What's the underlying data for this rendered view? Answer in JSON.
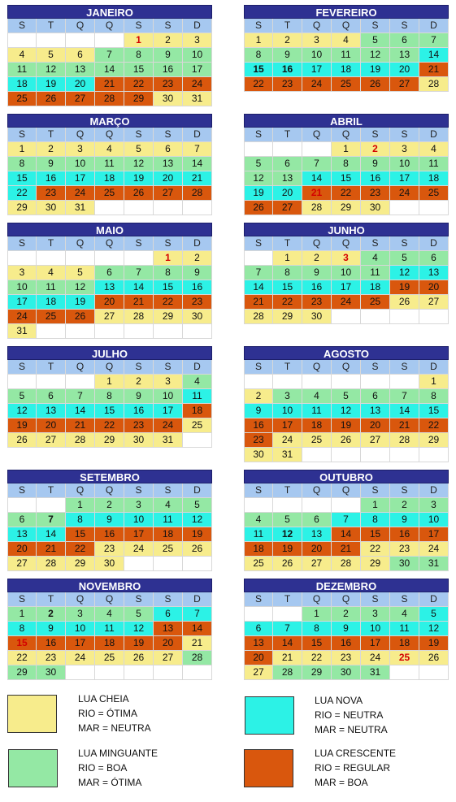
{
  "weekdays": [
    "S",
    "T",
    "Q",
    "Q",
    "S",
    "S",
    "D"
  ],
  "colors": {
    "Y": "#f7ec8c",
    "G": "#94e8a4",
    "C": "#2cf2e6",
    "O": "#d9570d",
    "W": "#ffffff"
  },
  "months": [
    {
      "name": "JANEIRO",
      "red": [
        1
      ],
      "bold": [],
      "rows": [
        [
          null,
          null,
          null,
          null,
          1,
          2,
          3
        ],
        [
          4,
          5,
          6,
          7,
          8,
          9,
          10
        ],
        [
          11,
          12,
          13,
          14,
          15,
          16,
          17
        ],
        [
          18,
          19,
          20,
          21,
          22,
          23,
          24
        ],
        [
          25,
          26,
          27,
          28,
          29,
          30,
          31
        ]
      ],
      "colors": [
        "WWWWYYY",
        "YYYGGGG",
        "GGGGGGG",
        "CCCOOOO",
        "OOOOOYY"
      ]
    },
    {
      "name": "FEVEREIRO",
      "red": [],
      "bold": [
        15,
        16
      ],
      "rows": [
        [
          1,
          2,
          3,
          4,
          5,
          6,
          7
        ],
        [
          8,
          9,
          10,
          11,
          12,
          13,
          14
        ],
        [
          15,
          16,
          17,
          18,
          19,
          20,
          21
        ],
        [
          22,
          23,
          24,
          25,
          26,
          27,
          28
        ]
      ],
      "colors": [
        "YYYYGGG",
        "GGGGGGC",
        "CCCCCCO",
        "OOOOOOY"
      ]
    },
    {
      "name": "MARÇO",
      "red": [],
      "bold": [],
      "rows": [
        [
          1,
          2,
          3,
          4,
          5,
          6,
          7
        ],
        [
          8,
          9,
          10,
          11,
          12,
          13,
          14
        ],
        [
          15,
          16,
          17,
          18,
          19,
          20,
          21
        ],
        [
          22,
          23,
          24,
          25,
          26,
          27,
          28
        ],
        [
          29,
          30,
          31,
          null,
          null,
          null,
          null
        ]
      ],
      "colors": [
        "YYYYYYY",
        "GGGGGGG",
        "CCCCCCC",
        "COOOOOO",
        "YYYWWWW"
      ]
    },
    {
      "name": "ABRIL",
      "red": [
        2,
        21
      ],
      "bold": [],
      "rows": [
        [
          null,
          null,
          null,
          1,
          2,
          3,
          4
        ],
        [
          5,
          6,
          7,
          8,
          9,
          10,
          11
        ],
        [
          12,
          13,
          14,
          15,
          16,
          17,
          18
        ],
        [
          19,
          20,
          21,
          22,
          23,
          24,
          25
        ],
        [
          26,
          27,
          28,
          29,
          30,
          null,
          null
        ]
      ],
      "colors": [
        "WWWYYYY",
        "GGGGGGG",
        "GGCCCCC",
        "CCOOOOO",
        "OOYYYWW"
      ]
    },
    {
      "name": "MAIO",
      "red": [
        1
      ],
      "bold": [],
      "rows": [
        [
          null,
          null,
          null,
          null,
          null,
          1,
          2
        ],
        [
          3,
          4,
          5,
          6,
          7,
          8,
          9
        ],
        [
          10,
          11,
          12,
          13,
          14,
          15,
          16
        ],
        [
          17,
          18,
          19,
          20,
          21,
          22,
          23
        ],
        [
          24,
          25,
          26,
          27,
          28,
          29,
          30
        ],
        [
          31,
          null,
          null,
          null,
          null,
          null,
          null
        ]
      ],
      "colors": [
        "WWWWWYY",
        "YYYGGGG",
        "GGGCCCC",
        "CCCOOOO",
        "OOOYYYY",
        "YWWWWWW"
      ]
    },
    {
      "name": "JUNHO",
      "red": [
        3
      ],
      "bold": [],
      "rows": [
        [
          null,
          1,
          2,
          3,
          4,
          5,
          6
        ],
        [
          7,
          8,
          9,
          10,
          11,
          12,
          13
        ],
        [
          14,
          15,
          16,
          17,
          18,
          19,
          20
        ],
        [
          21,
          22,
          23,
          24,
          25,
          26,
          27
        ],
        [
          28,
          29,
          30,
          null,
          null,
          null,
          null
        ]
      ],
      "colors": [
        "WYYYGGG",
        "GGGGGCC",
        "CCCCCOO",
        "OOOOOYY",
        "YYYWWWW"
      ]
    },
    {
      "name": "JULHO",
      "red": [],
      "bold": [],
      "rows": [
        [
          null,
          null,
          null,
          1,
          2,
          3,
          4
        ],
        [
          5,
          6,
          7,
          8,
          9,
          10,
          11
        ],
        [
          12,
          13,
          14,
          15,
          16,
          17,
          18
        ],
        [
          19,
          20,
          21,
          22,
          23,
          24,
          25
        ],
        [
          26,
          27,
          28,
          29,
          30,
          31,
          null
        ]
      ],
      "colors": [
        "WWWYYYG",
        "GGGGGGC",
        "CCCCCCO",
        "OOOOOOY",
        "YYYYYYW"
      ]
    },
    {
      "name": "AGOSTO",
      "red": [],
      "bold": [],
      "rows": [
        [
          null,
          null,
          null,
          null,
          null,
          null,
          1
        ],
        [
          2,
          3,
          4,
          5,
          6,
          7,
          8
        ],
        [
          9,
          10,
          11,
          12,
          13,
          14,
          15
        ],
        [
          16,
          17,
          18,
          19,
          20,
          21,
          22
        ],
        [
          23,
          24,
          25,
          26,
          27,
          28,
          29
        ],
        [
          30,
          31,
          null,
          null,
          null,
          null,
          null
        ]
      ],
      "colors": [
        "WWWWWWY",
        "YGGGGGG",
        "CCCCCCC",
        "OOOOOOO",
        "OYYYYYY",
        "YYWWWWW"
      ]
    },
    {
      "name": "SETEMBRO",
      "red": [],
      "bold": [
        7
      ],
      "rows": [
        [
          null,
          null,
          1,
          2,
          3,
          4,
          5
        ],
        [
          6,
          7,
          8,
          9,
          10,
          11,
          12
        ],
        [
          13,
          14,
          15,
          16,
          17,
          18,
          19
        ],
        [
          20,
          21,
          22,
          23,
          24,
          25,
          26
        ],
        [
          27,
          28,
          29,
          30,
          null,
          null,
          null
        ]
      ],
      "colors": [
        "WWGGGGG",
        "GGCCCCC",
        "CCOOOOO",
        "OOOYYYY",
        "YYYYWWW"
      ]
    },
    {
      "name": "OUTUBRO",
      "red": [],
      "bold": [
        12
      ],
      "rows": [
        [
          null,
          null,
          null,
          null,
          1,
          2,
          3
        ],
        [
          4,
          5,
          6,
          7,
          8,
          9,
          10
        ],
        [
          11,
          12,
          13,
          14,
          15,
          16,
          17
        ],
        [
          18,
          19,
          20,
          21,
          22,
          23,
          24
        ],
        [
          25,
          26,
          27,
          28,
          29,
          30,
          31
        ]
      ],
      "colors": [
        "WWWWGGG",
        "GGGCCCC",
        "CCCOOOO",
        "OOOOYYY",
        "YYYYYGG"
      ]
    },
    {
      "name": "NOVEMBRO",
      "red": [
        15
      ],
      "bold": [
        2
      ],
      "rows": [
        [
          1,
          2,
          3,
          4,
          5,
          6,
          7
        ],
        [
          8,
          9,
          10,
          11,
          12,
          13,
          14
        ],
        [
          15,
          16,
          17,
          18,
          19,
          20,
          21
        ],
        [
          22,
          23,
          24,
          25,
          26,
          27,
          28
        ],
        [
          29,
          30,
          null,
          null,
          null,
          null,
          null
        ]
      ],
      "colors": [
        "GGGGGCC",
        "CCCCCOO",
        "OOOOOOY",
        "YYYYYYG",
        "GGWWWWW"
      ]
    },
    {
      "name": "DEZEMBRO",
      "red": [
        25
      ],
      "bold": [],
      "rows": [
        [
          null,
          null,
          1,
          2,
          3,
          4,
          5
        ],
        [
          6,
          7,
          8,
          9,
          10,
          11,
          12
        ],
        [
          13,
          14,
          15,
          16,
          17,
          18,
          19
        ],
        [
          20,
          21,
          22,
          23,
          24,
          25,
          26
        ],
        [
          27,
          28,
          29,
          30,
          31,
          null,
          null
        ]
      ],
      "colors": [
        "WWGGGGC",
        "CCCCCCC",
        "OOOOOOO",
        "OYYYYYY",
        "YGGGGWW"
      ]
    }
  ],
  "legend": [
    {
      "color": "#f7ec8c",
      "lines": [
        "LUA CHEIA",
        "RIO = ÓTIMA",
        "MAR = NEUTRA"
      ]
    },
    {
      "color": "#2cf2e6",
      "lines": [
        "LUA NOVA",
        "RIO = NEUTRA",
        "MAR = NEUTRA"
      ]
    },
    {
      "color": "#94e8a4",
      "lines": [
        "LUA MINGUANTE",
        "RIO = BOA",
        "MAR = ÓTIMA"
      ]
    },
    {
      "color": "#d9570d",
      "lines": [
        "LUA CRESCENTE",
        "RIO = REGULAR",
        "MAR = BOA"
      ]
    }
  ]
}
